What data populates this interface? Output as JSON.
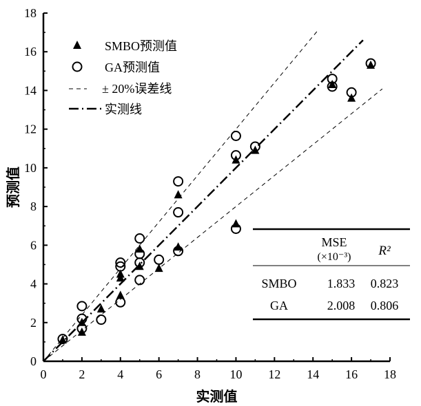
{
  "chart_data": {
    "type": "scatter",
    "xlabel": "实测值",
    "ylabel": "预测值",
    "xlim": [
      0,
      18
    ],
    "ylim": [
      0,
      18
    ],
    "xticks": [
      "0",
      "2",
      "4",
      "6",
      "8",
      "10",
      "12",
      "14",
      "16",
      "18"
    ],
    "yticks": [
      "0",
      "2",
      "4",
      "6",
      "8",
      "10",
      "12",
      "14",
      "16",
      "18"
    ],
    "legend": {
      "placement": "top-left",
      "entries": [
        "SMBO预测值",
        "GA预测值",
        "± 20%误差线",
        "实测线"
      ]
    },
    "series": [
      {
        "name": "SMBO预测值",
        "marker": "triangle",
        "points": [
          [
            1,
            1.1
          ],
          [
            2,
            1.5
          ],
          [
            2,
            2.0
          ],
          [
            3,
            2.7
          ],
          [
            4,
            4.5
          ],
          [
            4,
            4.3
          ],
          [
            4,
            3.4
          ],
          [
            5,
            5.8
          ],
          [
            5,
            4.9
          ],
          [
            6,
            4.8
          ],
          [
            7,
            8.6
          ],
          [
            7,
            5.9
          ],
          [
            10,
            10.4
          ],
          [
            10,
            7.1
          ],
          [
            11,
            10.9
          ],
          [
            15,
            14.3
          ],
          [
            16,
            13.6
          ],
          [
            17,
            15.3
          ]
        ]
      },
      {
        "name": "GA预测值",
        "marker": "circle",
        "points": [
          [
            1,
            1.15
          ],
          [
            2,
            2.85
          ],
          [
            2,
            2.2
          ],
          [
            2,
            1.7
          ],
          [
            3,
            2.15
          ],
          [
            4,
            5.1
          ],
          [
            4,
            4.9
          ],
          [
            4,
            3.05
          ],
          [
            5,
            6.35
          ],
          [
            5,
            5.55
          ],
          [
            5,
            5.1
          ],
          [
            5,
            4.2
          ],
          [
            6,
            5.25
          ],
          [
            7,
            9.3
          ],
          [
            7,
            7.7
          ],
          [
            7,
            5.7
          ],
          [
            10,
            11.65
          ],
          [
            10,
            10.65
          ],
          [
            10,
            6.85
          ],
          [
            11,
            11.1
          ],
          [
            15,
            14.6
          ],
          [
            15,
            14.2
          ],
          [
            16,
            13.9
          ],
          [
            17,
            15.4
          ]
        ]
      }
    ],
    "lines": [
      {
        "name": "+20%",
        "slope": 1.2,
        "xmax": 14.2
      },
      {
        "name": "-20%",
        "slope": 0.8,
        "xmax": 17.6
      },
      {
        "name": "实测线",
        "slope": 1.0,
        "xmax": 16.6
      }
    ],
    "table": {
      "headers": [
        "",
        "MSE",
        "(×10⁻³)",
        "R²"
      ],
      "rows": [
        [
          "SMBO",
          "1.833",
          "0.823"
        ],
        [
          "GA",
          "2.008",
          "0.806"
        ]
      ]
    }
  }
}
